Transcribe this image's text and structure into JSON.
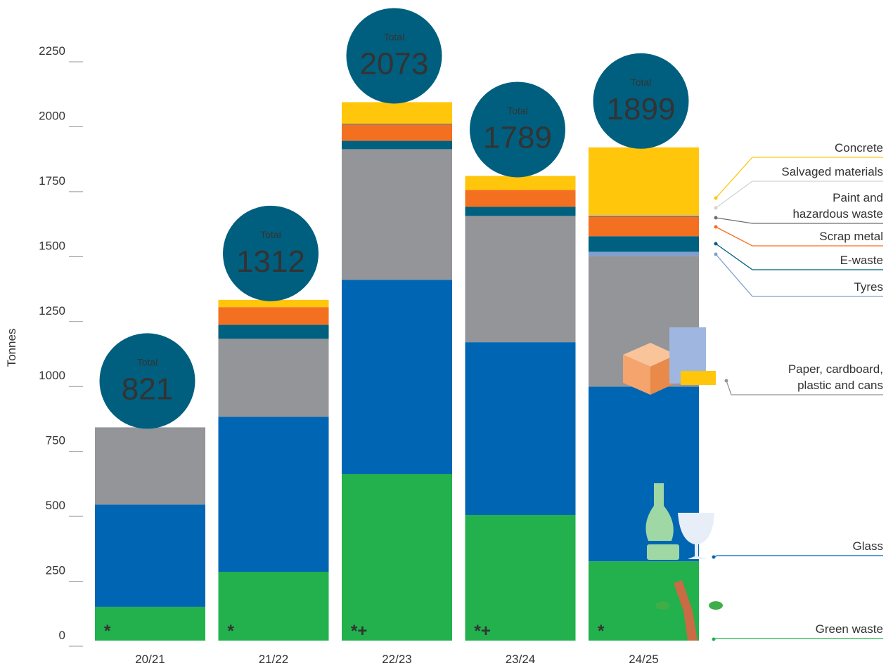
{
  "chart_data": {
    "type": "stacked_bar",
    "y_label": "Tonnes",
    "categories": [
      "20/21",
      "21/22",
      "22/23",
      "23/24",
      "24/25"
    ],
    "ylim": [
      0,
      2250
    ],
    "yticks": [
      0,
      250,
      500,
      750,
      1000,
      1250,
      1500,
      1750,
      2000,
      2250
    ],
    "series": [
      {
        "name": "Green waste",
        "color": "#22b14c",
        "values": [
          130,
          265,
          641,
          484,
          305
        ]
      },
      {
        "name": "Glass",
        "color": "#0066b3",
        "values": [
          394,
          597,
          748,
          665,
          673
        ]
      },
      {
        "name": "Paper, cardboard, plastic and cans",
        "color": "#939598",
        "values": [
          297,
          300,
          503,
          486,
          503
        ]
      },
      {
        "name": "Tyres",
        "color": "#7f9fcf",
        "values": [
          0,
          0,
          0,
          0,
          16
        ]
      },
      {
        "name": "E-waste",
        "color": "#00607f",
        "values": [
          0,
          54,
          32,
          35,
          60
        ]
      },
      {
        "name": "Scrap metal",
        "color": "#f37021",
        "values": [
          0,
          68,
          62,
          65,
          75
        ]
      },
      {
        "name": "Paint and hazardous waste",
        "color": "#6d6e71",
        "values": [
          0,
          0,
          4,
          0,
          4
        ]
      },
      {
        "name": "Salvaged materials",
        "color": "#d1d3d4",
        "values": [
          0,
          0,
          0,
          0,
          2
        ]
      },
      {
        "name": "Concrete",
        "color": "#ffc60b",
        "values": [
          0,
          28,
          83,
          54,
          261
        ]
      }
    ],
    "total_label": "Total",
    "totals": [
      821,
      1312,
      2073,
      1789,
      1899
    ],
    "total_color": "#005f7f",
    "footnote_marks": [
      "*",
      "*",
      "*+",
      "*+",
      "*"
    ]
  }
}
